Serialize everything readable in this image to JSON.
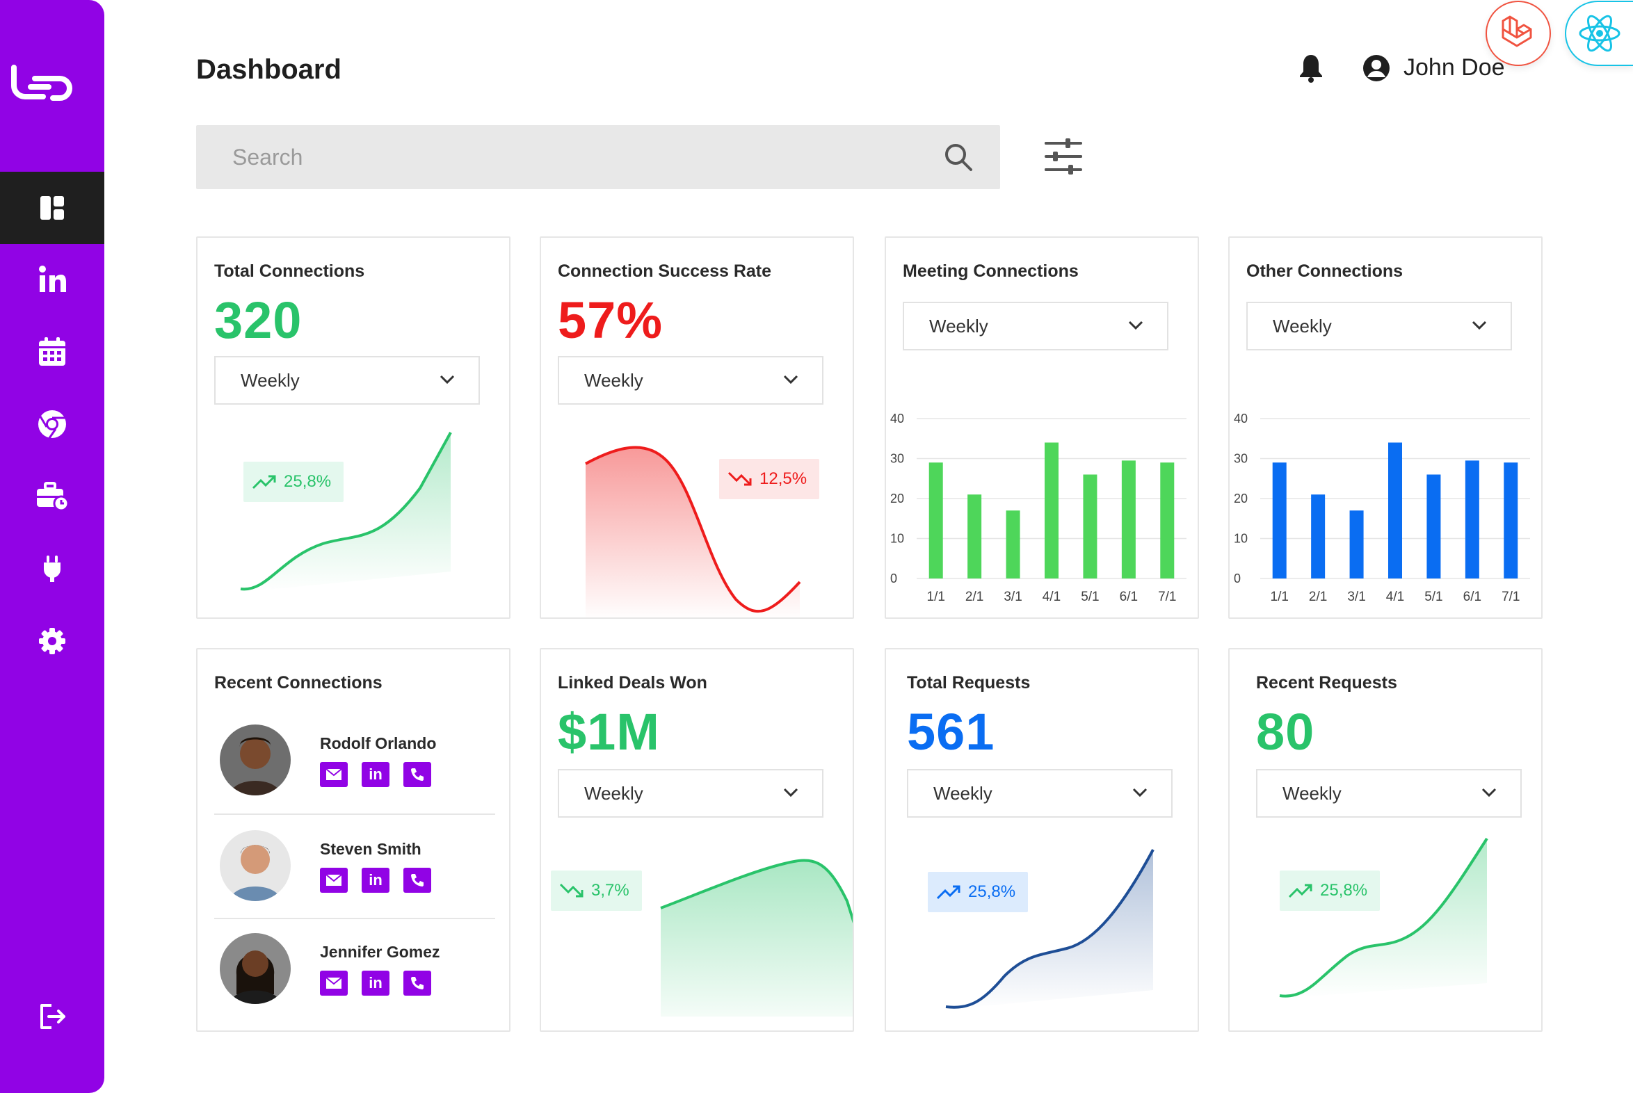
{
  "header": {
    "title": "Dashboard",
    "user_name": "John Doe",
    "search_placeholder": "Search"
  },
  "sidebar": {
    "items": [
      {
        "icon": "dashboard-icon",
        "active": true
      },
      {
        "icon": "linkedin-icon"
      },
      {
        "icon": "calendar-icon"
      },
      {
        "icon": "chrome-icon"
      },
      {
        "icon": "briefcase-clock-icon"
      },
      {
        "icon": "plug-icon"
      },
      {
        "icon": "gear-icon"
      },
      {
        "icon": "logout-icon"
      }
    ]
  },
  "colors": {
    "brand": "#9103e5",
    "green": "#29c36a",
    "red": "#ee1c1c",
    "blue": "#0a6df2"
  },
  "cards": {
    "total_connections": {
      "title": "Total Connections",
      "value": "320",
      "period": "Weekly",
      "trend": "25,8%"
    },
    "success_rate": {
      "title": "Connection Success Rate",
      "value": "57%",
      "period": "Weekly",
      "trend": "12,5%"
    },
    "meeting_connections": {
      "title": "Meeting Connections",
      "period": "Weekly"
    },
    "other_connections": {
      "title": "Other Connections",
      "period": "Weekly"
    },
    "recent_connections": {
      "title": "Recent Connections",
      "people": [
        {
          "name": "Rodolf Orlando"
        },
        {
          "name": "Steven Smith"
        },
        {
          "name": "Jennifer Gomez"
        }
      ],
      "action_labels": {
        "linkedin": "in"
      }
    },
    "deals_won": {
      "title": "Linked Deals Won",
      "value": "$1M",
      "period": "Weekly",
      "trend": "3,7%"
    },
    "total_requests": {
      "title": "Total Requests",
      "value": "561",
      "period": "Weekly",
      "trend": "25,8%"
    },
    "recent_requests": {
      "title": "Recent Requests",
      "value": "80",
      "period": "Weekly",
      "trend": "25,8%"
    }
  },
  "chart_data": [
    {
      "type": "bar",
      "categories": [
        "1/1",
        "2/1",
        "3/1",
        "4/1",
        "5/1",
        "6/1",
        "7/1"
      ],
      "values": [
        29,
        21,
        17,
        34,
        26,
        29.5,
        29
      ],
      "ylim": [
        0,
        40
      ],
      "yticks": [
        "0",
        "10",
        "20",
        "30",
        "40"
      ],
      "color": "#4ed65a",
      "grid": true
    },
    {
      "type": "bar",
      "categories": [
        "1/1",
        "2/1",
        "3/1",
        "4/1",
        "5/1",
        "6/1",
        "7/1"
      ],
      "values": [
        29,
        21,
        17,
        34,
        26,
        29.5,
        29
      ],
      "ylim": [
        0,
        40
      ],
      "yticks": [
        "0",
        "10",
        "20",
        "30",
        "40"
      ],
      "color": "#0a6df2",
      "grid": true
    }
  ]
}
